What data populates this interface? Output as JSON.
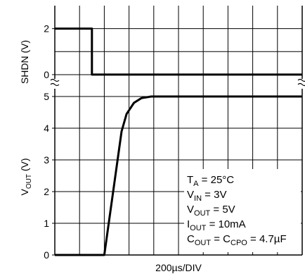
{
  "chart_data": [
    {
      "type": "line",
      "panel": "top",
      "ylabel": "SHDN (V)",
      "ylim": [
        -0.4,
        3
      ],
      "yticks": [
        0,
        2
      ],
      "x_divisions": 10,
      "grid": true,
      "series": [
        {
          "x": [
            0,
            1.5,
            1.5,
            5,
            10
          ],
          "values": [
            2,
            2,
            0,
            0,
            0
          ]
        }
      ]
    },
    {
      "type": "line",
      "panel": "bottom",
      "xlabel": "200µs/DIV",
      "ylabel_base": "V",
      "ylabel_sub": "OUT",
      "ylabel_unit": " (V)",
      "ylim": [
        0,
        5.4
      ],
      "yticks": [
        0,
        1,
        2,
        3,
        4,
        5
      ],
      "x_divisions": 10,
      "grid": true,
      "series": [
        {
          "x": [
            0,
            2,
            2.7,
            2.9,
            3.2,
            3.5,
            3.9,
            4.2,
            10
          ],
          "values": [
            0,
            0,
            3.9,
            4.45,
            4.8,
            4.95,
            5,
            5,
            5
          ]
        }
      ],
      "annotations": [
        {
          "base": "T",
          "sub": "A",
          "rest": " = 25°C"
        },
        {
          "base": "V",
          "sub": "IN",
          "rest": " = 3V"
        },
        {
          "base": "V",
          "sub": "OUT",
          "rest": " = 5V"
        },
        {
          "base": "I",
          "sub": "OUT",
          "rest": " = 10mA"
        },
        {
          "base": "C",
          "sub": "OUT",
          "rest": " = C",
          "sub2": "CPO",
          "rest2": " = 4.7µF"
        }
      ]
    }
  ]
}
